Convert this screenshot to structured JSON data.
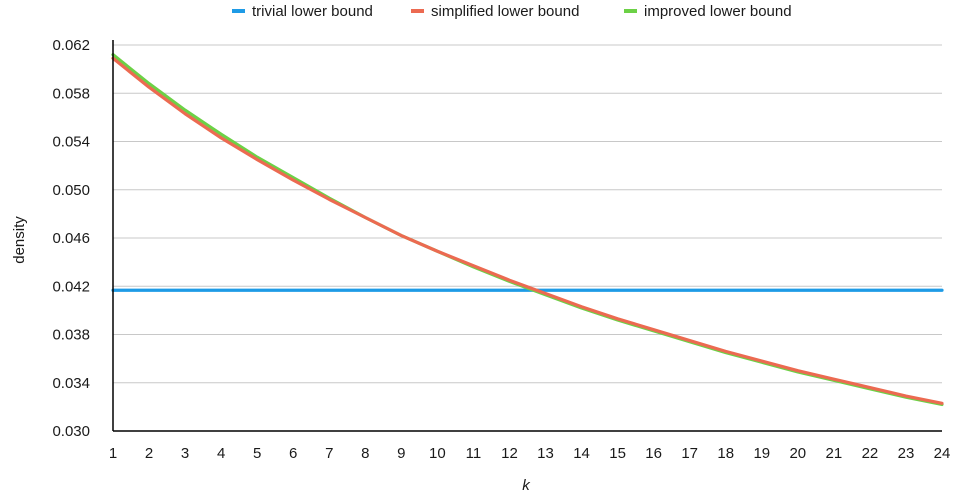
{
  "chart_data": {
    "type": "line",
    "xlabel": "k",
    "ylabel": "density",
    "x": [
      1,
      2,
      3,
      4,
      5,
      6,
      7,
      8,
      9,
      10,
      11,
      12,
      13,
      14,
      15,
      16,
      17,
      18,
      19,
      20,
      21,
      22,
      23,
      24
    ],
    "xlim": [
      1,
      24
    ],
    "ylim": [
      0.03,
      0.062
    ],
    "yticks": [
      "0.030",
      "0.034",
      "0.038",
      "0.042",
      "0.046",
      "0.050",
      "0.054",
      "0.058",
      "0.062"
    ],
    "grid": "horizontal",
    "legend_position": "top",
    "series": [
      {
        "name": "trivial lower bound",
        "color": "#1e9be6",
        "values": [
          0.04167,
          0.04167,
          0.04167,
          0.04167,
          0.04167,
          0.04167,
          0.04167,
          0.04167,
          0.04167,
          0.04167,
          0.04167,
          0.04167,
          0.04167,
          0.04167,
          0.04167,
          0.04167,
          0.04167,
          0.04167,
          0.04167,
          0.04167,
          0.04167,
          0.04167,
          0.04167,
          0.04167
        ]
      },
      {
        "name": "simplified lower bound",
        "color": "#ec6a51",
        "values": [
          0.0609,
          0.0585,
          0.0563,
          0.0543,
          0.0525,
          0.0508,
          0.0492,
          0.0477,
          0.0462,
          0.0449,
          0.0437,
          0.0425,
          0.0414,
          0.0403,
          0.0393,
          0.0384,
          0.0375,
          0.0366,
          0.0358,
          0.035,
          0.0343,
          0.0336,
          0.0329,
          0.0323
        ]
      },
      {
        "name": "improved lower bound",
        "color": "#6cd146",
        "values": [
          0.0612,
          0.0588,
          0.0566,
          0.0546,
          0.0527,
          0.051,
          0.0493,
          0.0477,
          0.0462,
          0.0449,
          0.0436,
          0.0424,
          0.0413,
          0.0402,
          0.0392,
          0.0383,
          0.0374,
          0.0365,
          0.0357,
          0.0349,
          0.0342,
          0.0335,
          0.0328,
          0.0322
        ]
      }
    ]
  }
}
